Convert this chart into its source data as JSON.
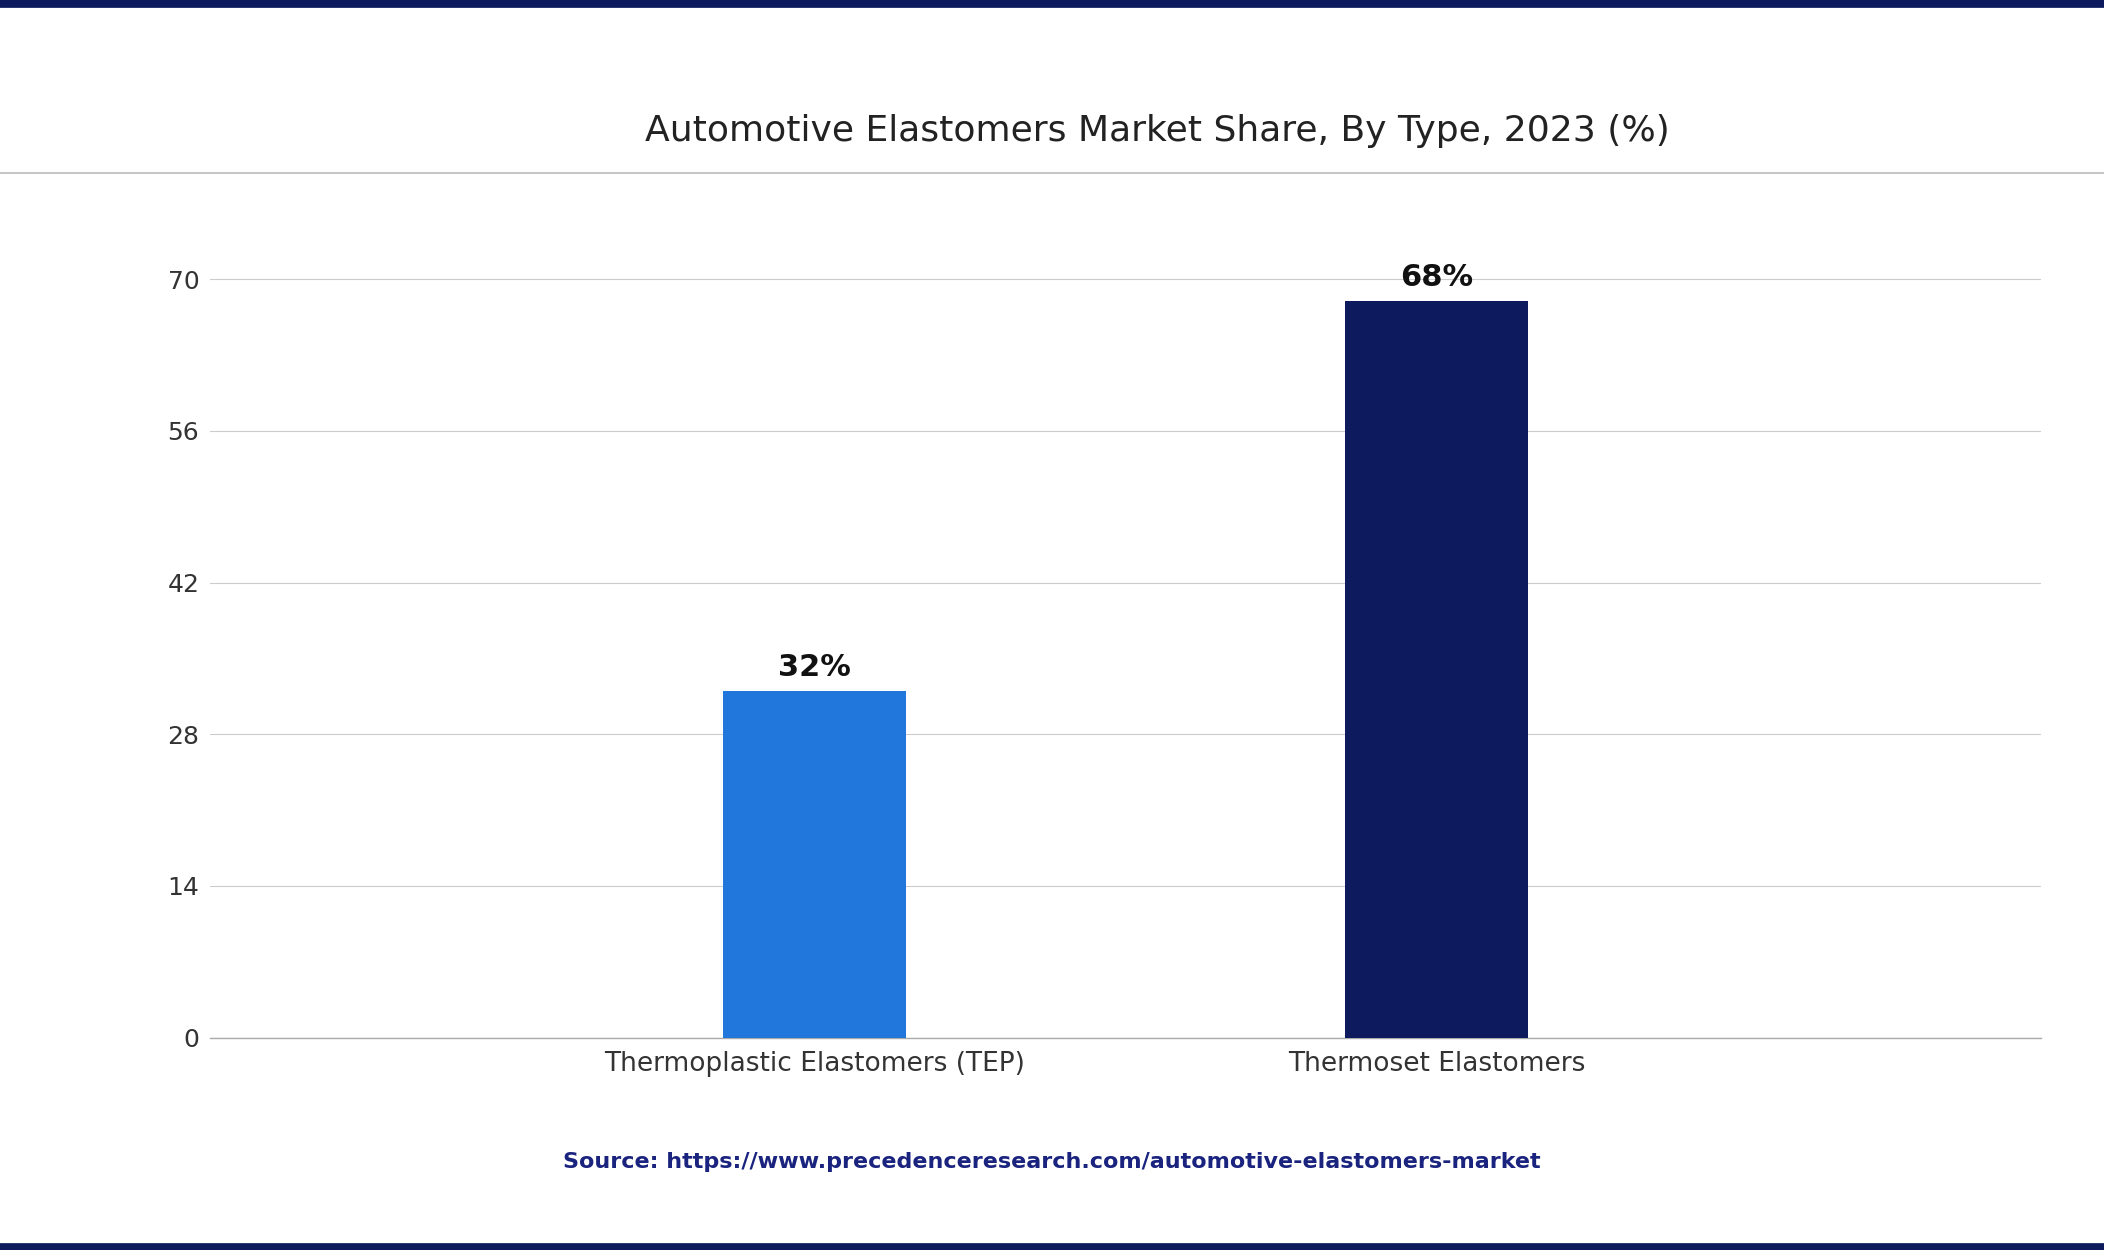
{
  "title": "Automotive Elastomers Market Share, By Type, 2023 (%)",
  "categories": [
    "Thermoplastic Elastomers (TEP)",
    "Thermoset Elastomers"
  ],
  "values": [
    32,
    68
  ],
  "bar_colors": [
    "#2277DD",
    "#0D1B5E"
  ],
  "bar_labels": [
    "32%",
    "68%"
  ],
  "yticks": [
    0,
    14,
    28,
    42,
    56,
    70
  ],
  "ylim": [
    0,
    75
  ],
  "background_color": "#ffffff",
  "grid_color": "#cccccc",
  "title_color": "#222222",
  "source_text": "Source: https://www.precedenceresearch.com/automotive-elastomers-market",
  "source_color": "#1a237e",
  "top_border_color": "#0D1B5E",
  "bottom_border_color": "#0D1B5E",
  "label_fontsize": 19,
  "title_fontsize": 26,
  "tick_fontsize": 18,
  "source_fontsize": 16,
  "bar_label_fontsize": 22,
  "separator_line_color": "#bbbbbb"
}
